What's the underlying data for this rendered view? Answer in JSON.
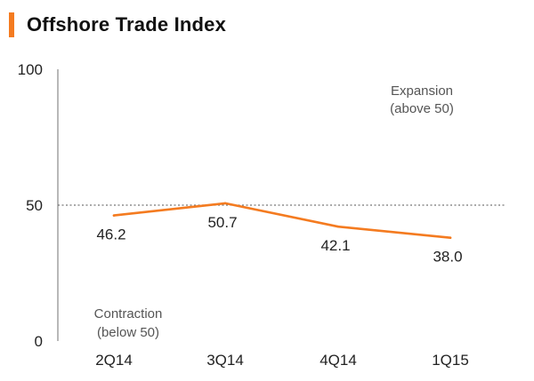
{
  "header": {
    "title": "Offshore Trade Index",
    "accent_color": "#f47b20"
  },
  "chart_data": {
    "type": "line",
    "title": "Offshore Trade Index",
    "categories": [
      "2Q14",
      "3Q14",
      "4Q14",
      "1Q15"
    ],
    "series": [
      {
        "name": "Offshore Trade Index",
        "values": [
          46.2,
          50.7,
          42.1,
          38.0
        ],
        "color": "#f47b20"
      }
    ],
    "data_labels": [
      "46.2",
      "50.7",
      "42.1",
      "38.0"
    ],
    "ylim": [
      0,
      100
    ],
    "yticks": [
      0,
      50,
      100
    ],
    "ytick_labels": [
      "0",
      "50",
      "100"
    ],
    "reference_line": {
      "value": 50,
      "style": "dotted"
    },
    "annotations": {
      "expansion": [
        "Expansion",
        "(above 50)"
      ],
      "contraction": [
        "Contraction",
        "(below 50)"
      ]
    },
    "xlabel": "",
    "ylabel": ""
  }
}
